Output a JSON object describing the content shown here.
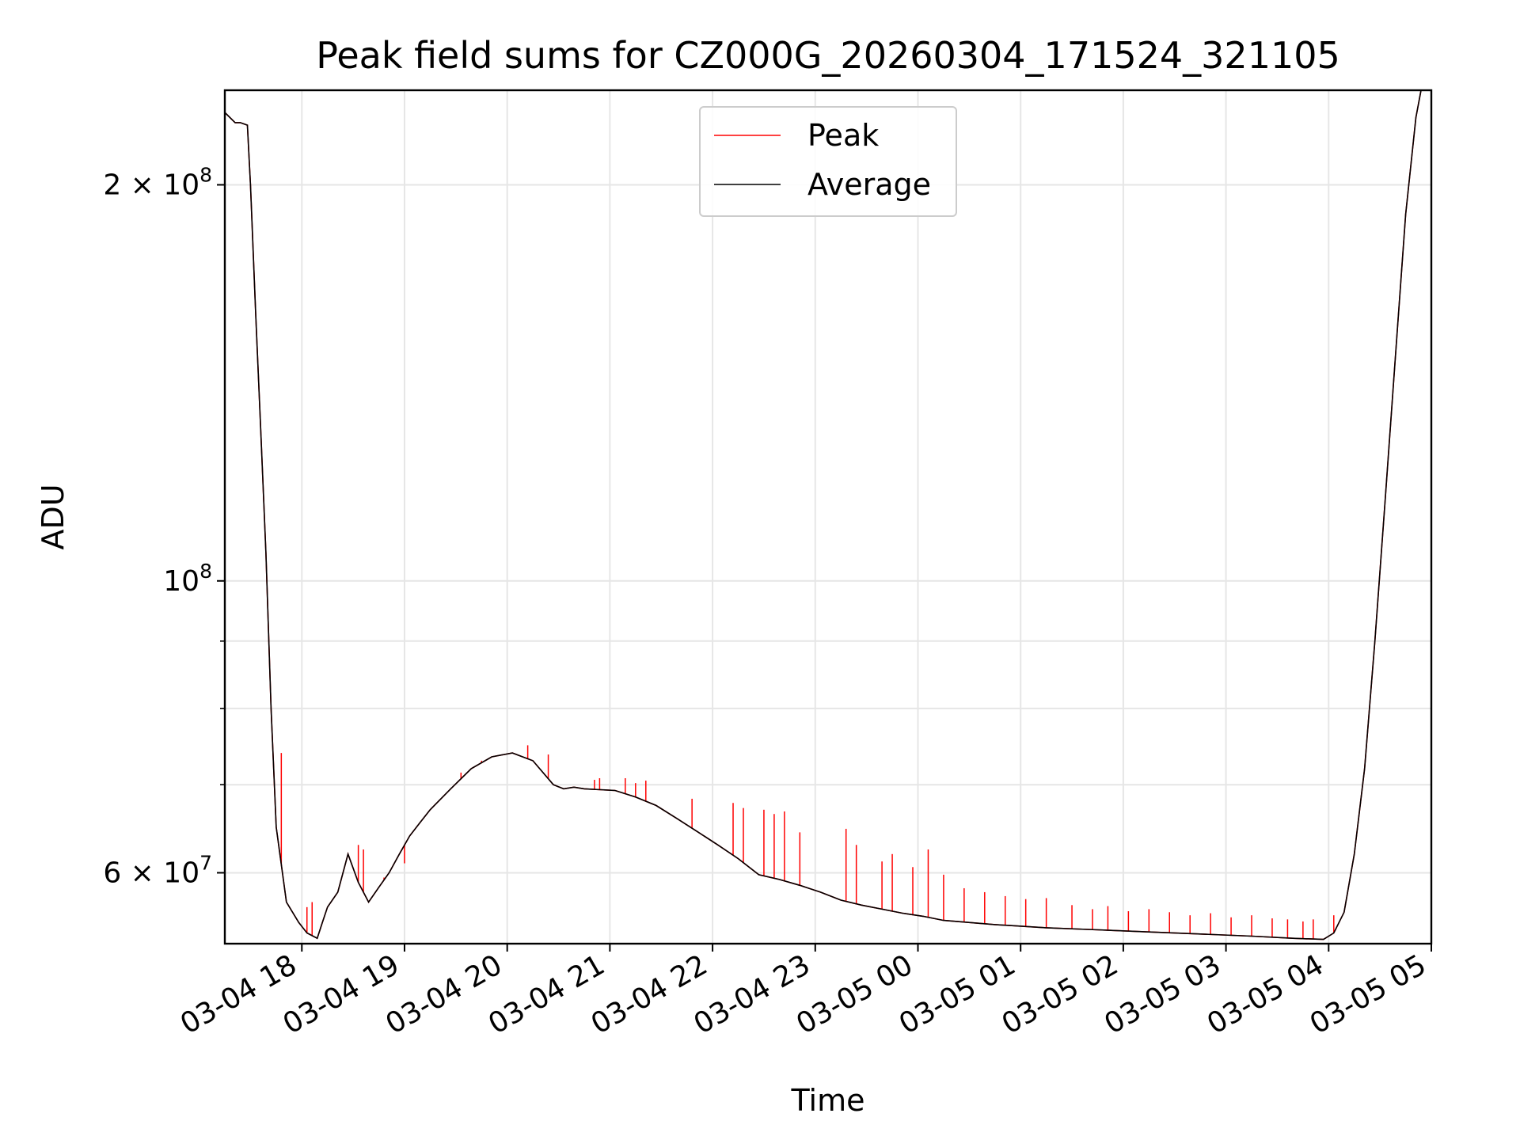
{
  "chart_data": {
    "type": "line",
    "title": "Peak field sums for CZ000G_20260304_171524_321105",
    "xlabel": "Time",
    "ylabel": "ADU",
    "x_unit": "hours since 2026-03-04 17:15",
    "xlim": [
      0,
      11.75
    ],
    "ylim": [
      53000000,
      236000000
    ],
    "yscale": "log",
    "grid": true,
    "legend_position": "top-center",
    "x_ticks": [
      {
        "value": 0.75,
        "label": "03-04 18"
      },
      {
        "value": 1.75,
        "label": "03-04 19"
      },
      {
        "value": 2.75,
        "label": "03-04 20"
      },
      {
        "value": 3.75,
        "label": "03-04 21"
      },
      {
        "value": 4.75,
        "label": "03-04 22"
      },
      {
        "value": 5.75,
        "label": "03-04 23"
      },
      {
        "value": 6.75,
        "label": "03-05 00"
      },
      {
        "value": 7.75,
        "label": "03-05 01"
      },
      {
        "value": 8.75,
        "label": "03-05 02"
      },
      {
        "value": 9.75,
        "label": "03-05 03"
      },
      {
        "value": 10.75,
        "label": "03-05 04"
      },
      {
        "value": 11.75,
        "label": "03-05 05"
      }
    ],
    "y_major_ticks": [
      {
        "value": 60000000,
        "base": "6 × 10",
        "exp": "7"
      },
      {
        "value": 100000000,
        "base": "10",
        "exp": "8"
      },
      {
        "value": 200000000,
        "base": "2 × 10",
        "exp": "8"
      }
    ],
    "y_minor_ticks": [
      70000000,
      80000000,
      90000000
    ],
    "colors": {
      "peak": "#ff0000",
      "average": "#000000"
    },
    "series": [
      {
        "name": "Average",
        "key": "average",
        "x": [
          0,
          0.1,
          0.15,
          0.22,
          0.25,
          0.3,
          0.35,
          0.4,
          0.45,
          0.5,
          0.6,
          0.72,
          0.8,
          0.9,
          0.95,
          1.0,
          1.1,
          1.2,
          1.3,
          1.4,
          1.5,
          1.6,
          1.7,
          1.8,
          1.9,
          2.0,
          2.2,
          2.4,
          2.6,
          2.8,
          3.0,
          3.2,
          3.3,
          3.4,
          3.5,
          3.8,
          4.0,
          4.2,
          4.4,
          4.6,
          4.8,
          5.0,
          5.2,
          5.4,
          5.6,
          5.8,
          6.0,
          6.2,
          6.4,
          6.6,
          6.8,
          7.0,
          7.5,
          8.0,
          8.5,
          9.0,
          9.5,
          10.0,
          10.4,
          10.7,
          10.8,
          10.9,
          11.0,
          11.1,
          11.2,
          11.3,
          11.4,
          11.5,
          11.6,
          11.65,
          11.75
        ],
        "y": [
          227000000,
          223000000,
          223000000,
          222000000,
          200000000,
          160000000,
          130000000,
          105000000,
          80000000,
          65000000,
          57000000,
          55000000,
          54000000,
          53500000,
          55000000,
          56500000,
          58000000,
          62000000,
          59000000,
          57000000,
          58500000,
          60000000,
          62000000,
          64000000,
          65500000,
          67000000,
          69500000,
          72000000,
          73500000,
          74000000,
          73000000,
          70000000,
          69500000,
          69700000,
          69500000,
          69300000,
          68500000,
          67500000,
          66000000,
          64500000,
          63000000,
          61500000,
          59800000,
          59300000,
          58700000,
          58000000,
          57200000,
          56700000,
          56300000,
          55900000,
          55600000,
          55200000,
          54800000,
          54500000,
          54300000,
          54100000,
          53900000,
          53700000,
          53500000,
          53400000,
          54000000,
          56000000,
          62000000,
          72000000,
          90000000,
          115000000,
          148000000,
          190000000,
          225000000,
          236000000,
          236000000
        ]
      },
      {
        "name": "Peak",
        "key": "peak",
        "x": [
          0,
          0.1,
          0.15,
          0.22,
          0.25,
          0.3,
          0.35,
          0.4,
          0.45,
          0.5,
          0.6,
          0.72,
          0.8,
          0.9,
          0.95,
          1.0,
          1.1,
          1.2,
          1.3,
          1.4,
          1.5,
          1.6,
          1.7,
          1.8,
          1.9,
          2.0,
          2.2,
          2.4,
          2.6,
          2.8,
          3.0,
          3.2,
          3.3,
          3.4,
          3.5,
          3.8,
          4.0,
          4.2,
          4.4,
          4.6,
          4.8,
          5.0,
          5.2,
          5.4,
          5.6,
          5.8,
          6.0,
          6.2,
          6.4,
          6.6,
          6.8,
          7.0,
          7.5,
          8.0,
          8.5,
          9.0,
          9.5,
          10.0,
          10.4,
          10.7,
          10.8,
          10.9,
          11.0,
          11.1,
          11.2,
          11.3,
          11.4,
          11.5,
          11.6,
          11.65,
          11.75
        ],
        "y": [
          227000000,
          223000000,
          223000000,
          222000000,
          200000000,
          160000000,
          130000000,
          105000000,
          80000000,
          65000000,
          57000000,
          55000000,
          54000000,
          53500000,
          55000000,
          56500000,
          58000000,
          62000000,
          59000000,
          57000000,
          58500000,
          60000000,
          62000000,
          64000000,
          65500000,
          67000000,
          69500000,
          72000000,
          73500000,
          74000000,
          73000000,
          70000000,
          69500000,
          69700000,
          69500000,
          69300000,
          68500000,
          67500000,
          66000000,
          64500000,
          63000000,
          61500000,
          59800000,
          59300000,
          58700000,
          58000000,
          57200000,
          56700000,
          56300000,
          55900000,
          55600000,
          55200000,
          54800000,
          54500000,
          54300000,
          54100000,
          53900000,
          53700000,
          53500000,
          53400000,
          54000000,
          56000000,
          62000000,
          72000000,
          90000000,
          115000000,
          148000000,
          190000000,
          225000000,
          236000000,
          236000000
        ],
        "spikes": [
          [
            0.55,
            74000000
          ],
          [
            0.8,
            56500000
          ],
          [
            0.85,
            57000000
          ],
          [
            1.3,
            63000000
          ],
          [
            1.35,
            62500000
          ],
          [
            1.55,
            59500000
          ],
          [
            1.75,
            61000000
          ],
          [
            2.3,
            71500000
          ],
          [
            2.5,
            73000000
          ],
          [
            2.95,
            75000000
          ],
          [
            3.15,
            73800000
          ],
          [
            3.6,
            70600000
          ],
          [
            3.65,
            70800000
          ],
          [
            3.9,
            70800000
          ],
          [
            4.0,
            70200000
          ],
          [
            4.1,
            70500000
          ],
          [
            4.55,
            68300000
          ],
          [
            4.95,
            67800000
          ],
          [
            5.05,
            67200000
          ],
          [
            5.25,
            67000000
          ],
          [
            5.35,
            66500000
          ],
          [
            5.45,
            66800000
          ],
          [
            5.6,
            64400000
          ],
          [
            6.05,
            64800000
          ],
          [
            6.15,
            63000000
          ],
          [
            6.4,
            61200000
          ],
          [
            6.5,
            62000000
          ],
          [
            6.7,
            60600000
          ],
          [
            6.85,
            62500000
          ],
          [
            7.0,
            59800000
          ],
          [
            7.2,
            58400000
          ],
          [
            7.4,
            58000000
          ],
          [
            7.6,
            57600000
          ],
          [
            7.8,
            57300000
          ],
          [
            8.0,
            57400000
          ],
          [
            8.25,
            56700000
          ],
          [
            8.45,
            56300000
          ],
          [
            8.6,
            56600000
          ],
          [
            8.8,
            56100000
          ],
          [
            9.0,
            56300000
          ],
          [
            9.2,
            56000000
          ],
          [
            9.4,
            55700000
          ],
          [
            9.6,
            55900000
          ],
          [
            9.8,
            55500000
          ],
          [
            10.0,
            55700000
          ],
          [
            10.2,
            55400000
          ],
          [
            10.35,
            55300000
          ],
          [
            10.5,
            55100000
          ],
          [
            10.6,
            55300000
          ],
          [
            10.8,
            55700000
          ]
        ]
      }
    ]
  }
}
